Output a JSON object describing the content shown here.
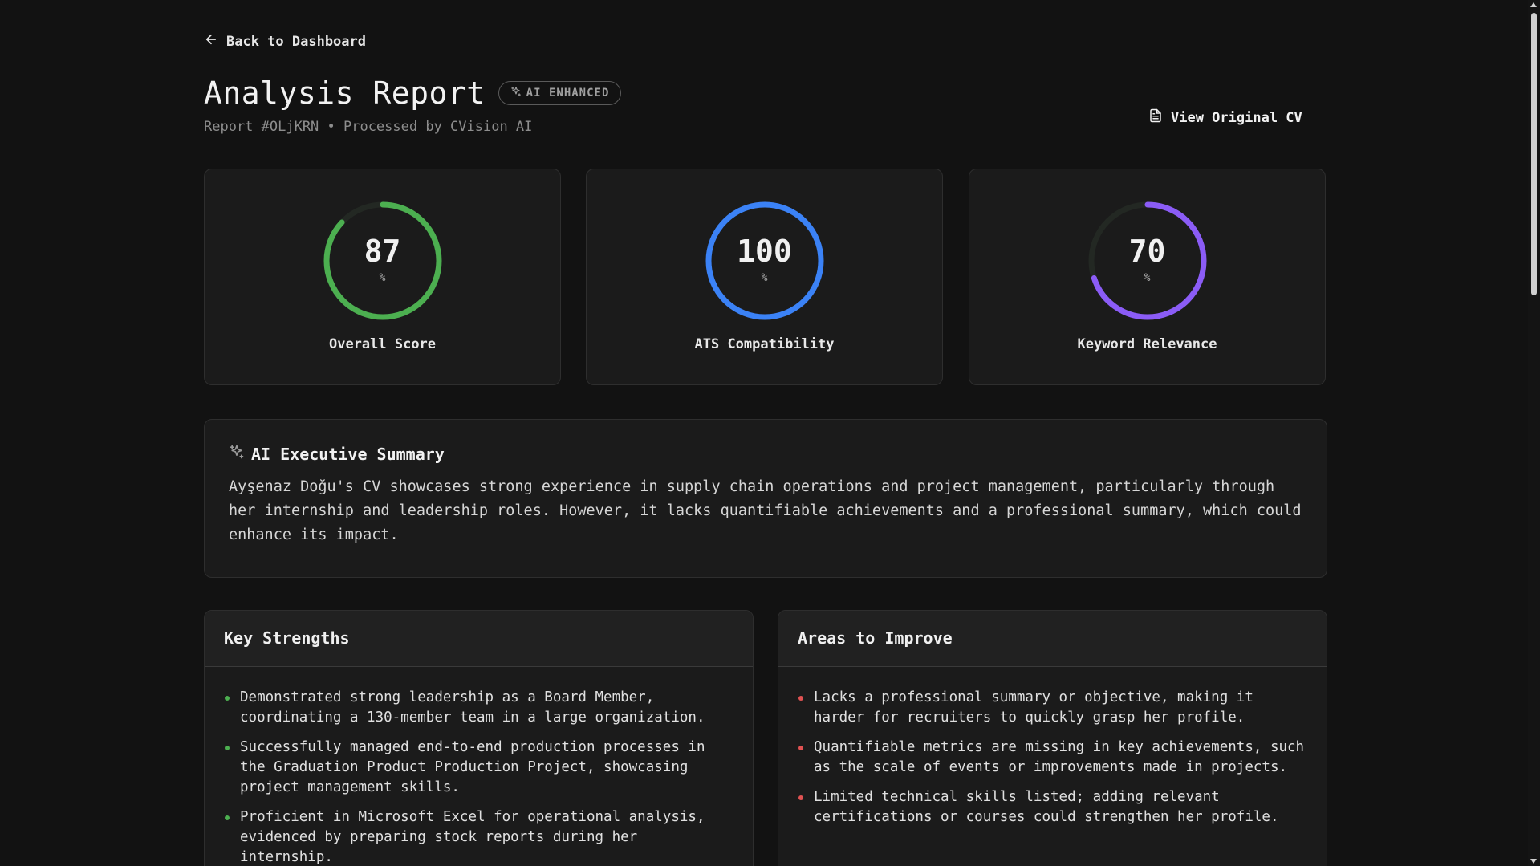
{
  "nav": {
    "back_label": "Back to Dashboard"
  },
  "header": {
    "title": "Analysis Report",
    "badge": "AI ENHANCED",
    "subtitle": "Report #OLjKRN • Processed by CVision AI",
    "view_cv_label": "View Original CV"
  },
  "scores": [
    {
      "value": "87",
      "unit": "%",
      "label": "Overall Score",
      "percent": 87,
      "color": "#4caf50"
    },
    {
      "value": "100",
      "unit": "%",
      "label": "ATS Compatibility",
      "percent": 100,
      "color": "#3b82f6"
    },
    {
      "value": "70",
      "unit": "%",
      "label": "Keyword Relevance",
      "percent": 70,
      "color": "#8b5cf6"
    }
  ],
  "summary": {
    "title": "AI Executive Summary",
    "text": "Ayşenaz Doğu's CV showcases strong experience in supply chain operations and project management, particularly through her internship and leadership roles. However, it lacks quantifiable achievements and a professional summary, which could enhance its impact."
  },
  "strengths": {
    "title": "Key Strengths",
    "bullet_color": "#4caf50",
    "items": [
      "Demonstrated strong leadership as a Board Member, coordinating a 130-member team in a large organization.",
      "Successfully managed end-to-end production processes in the Graduation Product Production Project, showcasing project management skills.",
      "Proficient in Microsoft Excel for operational analysis, evidenced by preparing stock reports during her internship."
    ]
  },
  "improvements": {
    "title": "Areas to Improve",
    "bullet_color": "#e05252",
    "items": [
      "Lacks a professional summary or objective, making it harder for recruiters to quickly grasp her profile.",
      "Quantifiable metrics are missing in key achievements, such as the scale of events or improvements made in projects.",
      "Limited technical skills listed; adding relevant certifications or courses could strengthen her profile."
    ]
  },
  "colors": {
    "background": "#121212",
    "card": "#1b1b1b",
    "gauge_track": "#242a24"
  },
  "icons": {
    "back": "arrow-left-icon",
    "badge": "sparkles-icon",
    "view_cv": "document-icon",
    "summary": "sparkles-icon"
  }
}
